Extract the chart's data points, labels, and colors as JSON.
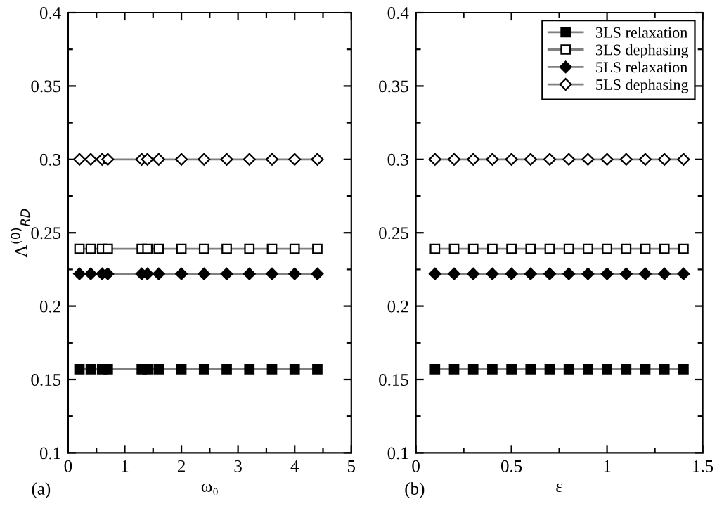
{
  "chart_data": [
    {
      "type": "line",
      "ylabel": "Λ$^{(0)}$$_{RD}$",
      "xlabel": "ω₀",
      "annotations": [
        "(a)"
      ],
      "legend": false,
      "grid": false,
      "x": [
        0.2,
        0.4,
        0.6,
        0.7,
        1.3,
        1.4,
        1.6,
        2.0,
        2.4,
        2.8,
        3.2,
        3.6,
        4.0,
        4.4
      ],
      "xlim": [
        0,
        5
      ],
      "xticks": [
        0,
        {
          "value": 0.5,
          "label": null
        },
        1,
        {
          "value": 1.5,
          "label": null
        },
        2,
        {
          "value": 2.5,
          "label": null
        },
        3,
        {
          "value": 3.5,
          "label": null
        },
        4,
        {
          "value": 4.5,
          "label": null
        },
        5
      ],
      "ylim": [
        0.1,
        0.4
      ],
      "yticks": [
        0.1,
        {
          "value": 0.125,
          "label": null
        },
        0.15,
        {
          "value": 0.175,
          "label": null
        },
        0.2,
        {
          "value": 0.225,
          "label": null
        },
        0.25,
        {
          "value": 0.275,
          "label": null
        },
        0.3,
        {
          "value": 0.325,
          "label": null
        },
        0.35,
        {
          "value": 0.375,
          "label": null
        },
        0.4
      ],
      "series": [
        {
          "color": "#000000",
          "marker": "square",
          "values": [
            0.157,
            0.157,
            0.157,
            0.157,
            0.157,
            0.157,
            0.157,
            0.157,
            0.157,
            0.157,
            0.157,
            0.157,
            0.157,
            0.157
          ]
        },
        {
          "color": "#ffffff",
          "marker": "square",
          "values": [
            0.239,
            0.239,
            0.239,
            0.239,
            0.239,
            0.239,
            0.239,
            0.239,
            0.239,
            0.239,
            0.239,
            0.239,
            0.239,
            0.239
          ]
        },
        {
          "color": "#000000",
          "marker": "diamond",
          "values": [
            0.222,
            0.222,
            0.222,
            0.222,
            0.222,
            0.222,
            0.222,
            0.222,
            0.222,
            0.222,
            0.222,
            0.222,
            0.222,
            0.222
          ]
        },
        {
          "color": "#ffffff",
          "marker": "diamond",
          "values": [
            0.3,
            0.3,
            0.3,
            0.3,
            0.3,
            0.3,
            0.3,
            0.3,
            0.3,
            0.3,
            0.3,
            0.3,
            0.3,
            0.3
          ]
        }
      ]
    },
    {
      "type": "line",
      "xlabel": "ε",
      "annotations": [
        "(b)"
      ],
      "legend": "top right",
      "grid": false,
      "x": [
        0.1,
        0.2,
        0.3,
        0.4,
        0.5,
        0.6,
        0.7,
        0.8,
        0.9,
        1.0,
        1.1,
        1.2,
        1.3,
        1.4
      ],
      "xlim": [
        0,
        1.5
      ],
      "xticks": [
        0,
        {
          "value": 0.25,
          "label": null
        },
        0.5,
        {
          "value": 0.75,
          "label": null
        },
        1,
        {
          "value": 1.25,
          "label": null
        },
        1.5
      ],
      "ylim": [
        0.1,
        0.4
      ],
      "yticks": [
        0.1,
        {
          "value": 0.125,
          "label": null
        },
        0.15,
        {
          "value": 0.175,
          "label": null
        },
        0.2,
        {
          "value": 0.225,
          "label": null
        },
        0.25,
        {
          "value": 0.275,
          "label": null
        },
        0.3,
        {
          "value": 0.325,
          "label": null
        },
        0.35,
        {
          "value": 0.375,
          "label": null
        },
        0.4
      ],
      "series": [
        {
          "name": "3LS relaxation",
          "color": "#000000",
          "marker": "square",
          "values": [
            0.157,
            0.157,
            0.157,
            0.157,
            0.157,
            0.157,
            0.157,
            0.157,
            0.157,
            0.157,
            0.157,
            0.157,
            0.157,
            0.157
          ]
        },
        {
          "name": "3LS dephasing",
          "color": "#ffffff",
          "marker": "square",
          "values": [
            0.239,
            0.239,
            0.239,
            0.239,
            0.239,
            0.239,
            0.239,
            0.239,
            0.239,
            0.239,
            0.239,
            0.239,
            0.239,
            0.239
          ]
        },
        {
          "name": "5LS relaxation",
          "color": "#000000",
          "marker": "diamond",
          "values": [
            0.222,
            0.222,
            0.222,
            0.222,
            0.222,
            0.222,
            0.222,
            0.222,
            0.222,
            0.222,
            0.222,
            0.222,
            0.222,
            0.222
          ]
        },
        {
          "name": "5LS dephasing",
          "color": "#ffffff",
          "marker": "diamond",
          "values": [
            0.3,
            0.3,
            0.3,
            0.3,
            0.3,
            0.3,
            0.3,
            0.3,
            0.3,
            0.3,
            0.3,
            0.3,
            0.3,
            0.3
          ]
        }
      ]
    }
  ]
}
